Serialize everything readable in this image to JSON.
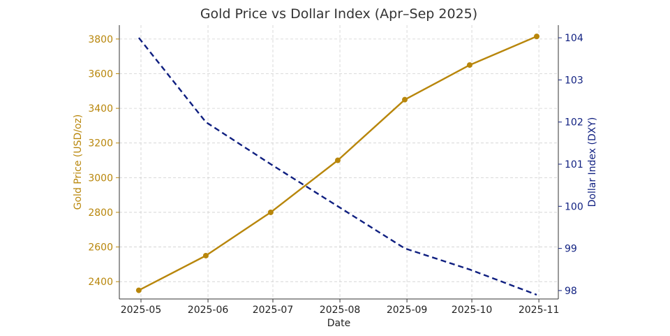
{
  "chart_data": {
    "type": "line",
    "title": "Gold Price vs Dollar Index (Apr–Sep 2025)",
    "xlabel": "Date",
    "ylabel_left": "Gold Price (USD/oz)",
    "ylabel_right": "Dollar Index (DXY)",
    "x": [
      "2025-04-30",
      "2025-05-31",
      "2025-06-30",
      "2025-07-31",
      "2025-08-31",
      "2025-09-30",
      "2025-10-31"
    ],
    "x_ticks": [
      "2025-05-01",
      "2025-06-01",
      "2025-07-01",
      "2025-08-01",
      "2025-09-01",
      "2025-10-01",
      "2025-11-01"
    ],
    "x_tick_labels": [
      "2025-05",
      "2025-06",
      "2025-07",
      "2025-08",
      "2025-09",
      "2025-10",
      "2025-11"
    ],
    "series": [
      {
        "axis": "left",
        "values": [
          2350,
          2550,
          2800,
          3100,
          3450,
          3650,
          3815
        ],
        "color": "#b8860b",
        "style": "solid",
        "marker": "circle"
      },
      {
        "axis": "right",
        "values": [
          104.0,
          102.0,
          101.0,
          100.0,
          99.0,
          98.5,
          97.9
        ],
        "color": "#0f1f80",
        "style": "dashed",
        "marker": "none"
      }
    ],
    "ylim_left": [
      2300,
      3880
    ],
    "yticks_left": [
      2400,
      2600,
      2800,
      3000,
      3200,
      3400,
      3600,
      3800
    ],
    "ylim_right": [
      97.8,
      104.3
    ],
    "yticks_right": [
      98,
      99,
      100,
      101,
      102,
      103,
      104
    ],
    "grid": true,
    "left_axis_color": "#b8860b",
    "right_axis_color": "#0f1f80"
  }
}
